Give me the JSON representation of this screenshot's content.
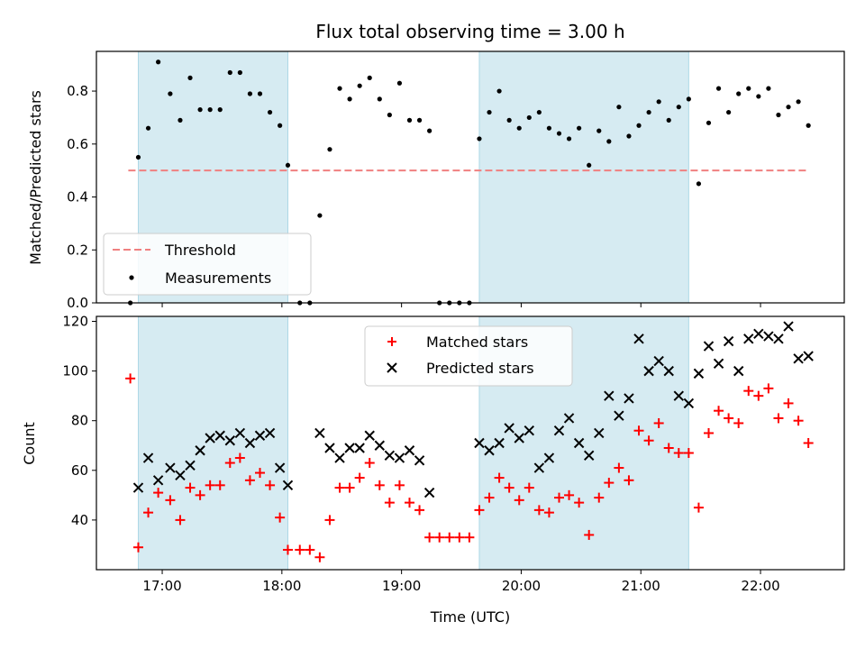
{
  "chart_data": [
    {
      "type": "scatter",
      "title": "Flux total observing time = 3.00 h",
      "ylabel": "Matched/Predicted stars",
      "xlabel": "",
      "ylim": [
        0,
        0.95
      ],
      "xlim": [
        "16:27",
        "22:42"
      ],
      "yticks": [
        "0.0",
        "0.2",
        "0.4",
        "0.6",
        "0.8"
      ],
      "yticks_values": [
        0,
        0.2,
        0.4,
        0.6,
        0.8
      ],
      "shaded_regions": [
        [
          "16:48",
          "18:03"
        ],
        [
          "19:39",
          "21:24"
        ]
      ],
      "threshold": {
        "name": "Threshold",
        "value": 0.5,
        "x_start": "16:43",
        "x_end": "22:24",
        "color": "#f08080"
      },
      "series": [
        {
          "name": "Measurements",
          "color": "#000000",
          "x": [
            "16:44",
            "16:48",
            "16:53",
            "16:58",
            "17:04",
            "17:09",
            "17:14",
            "17:19",
            "17:24",
            "17:29",
            "17:34",
            "17:39",
            "17:44",
            "17:49",
            "17:54",
            "17:59",
            "18:03",
            "18:09",
            "18:14",
            "18:19",
            "18:24",
            "18:29",
            "18:34",
            "18:39",
            "18:44",
            "18:49",
            "18:54",
            "18:59",
            "19:04",
            "19:09",
            "19:14",
            "19:19",
            "19:24",
            "19:29",
            "19:34",
            "19:39",
            "19:44",
            "19:49",
            "19:54",
            "19:59",
            "20:04",
            "20:09",
            "20:14",
            "20:19",
            "20:24",
            "20:29",
            "20:34",
            "20:39",
            "20:44",
            "20:49",
            "20:54",
            "20:59",
            "21:04",
            "21:09",
            "21:14",
            "21:19",
            "21:24",
            "21:29",
            "21:34",
            "21:39",
            "21:44",
            "21:49",
            "21:54",
            "21:59",
            "22:04",
            "22:09",
            "22:14",
            "22:19",
            "22:24"
          ],
          "y": [
            0.0,
            0.55,
            0.66,
            0.91,
            0.79,
            0.69,
            0.85,
            0.73,
            0.73,
            0.73,
            0.87,
            0.87,
            0.79,
            0.79,
            0.72,
            0.67,
            0.52,
            0.0,
            0.0,
            0.33,
            0.58,
            0.81,
            0.77,
            0.82,
            0.85,
            0.77,
            0.71,
            0.83,
            0.69,
            0.69,
            0.65,
            0.0,
            0.0,
            0.0,
            0.0,
            0.62,
            0.72,
            0.8,
            0.69,
            0.66,
            0.7,
            0.72,
            0.66,
            0.64,
            0.62,
            0.66,
            0.52,
            0.65,
            0.61,
            0.74,
            0.63,
            0.67,
            0.72,
            0.76,
            0.69,
            0.74,
            0.77,
            0.45,
            0.68,
            0.81,
            0.72,
            0.79,
            0.81,
            0.78,
            0.81,
            0.71,
            0.74,
            0.76,
            0.67
          ]
        }
      ],
      "legend": {
        "placement": "lower-left",
        "entries": [
          "Threshold",
          "Measurements"
        ]
      }
    },
    {
      "type": "scatter",
      "title": "",
      "xlabel": "Time (UTC)",
      "ylabel": "Count",
      "ylim": [
        20,
        122
      ],
      "xlim": [
        "16:27",
        "22:42"
      ],
      "xticks": [
        "17:00",
        "18:00",
        "19:00",
        "20:00",
        "21:00",
        "22:00"
      ],
      "yticks": [
        "40",
        "60",
        "80",
        "100",
        "120"
      ],
      "yticks_values": [
        40,
        60,
        80,
        100,
        120
      ],
      "shaded_regions": [
        [
          "16:48",
          "18:03"
        ],
        [
          "19:39",
          "21:24"
        ]
      ],
      "series": [
        {
          "name": "Matched stars",
          "marker": "+",
          "color": "#ff0000",
          "x": [
            "16:44",
            "16:48",
            "16:53",
            "16:58",
            "17:04",
            "17:09",
            "17:14",
            "17:19",
            "17:24",
            "17:29",
            "17:34",
            "17:39",
            "17:44",
            "17:49",
            "17:54",
            "17:59",
            "18:03",
            "18:09",
            "18:14",
            "18:19",
            "18:24",
            "18:29",
            "18:34",
            "18:39",
            "18:44",
            "18:49",
            "18:54",
            "18:59",
            "19:04",
            "19:09",
            "19:14",
            "19:19",
            "19:24",
            "19:29",
            "19:34",
            "19:39",
            "19:44",
            "19:49",
            "19:54",
            "19:59",
            "20:04",
            "20:09",
            "20:14",
            "20:19",
            "20:24",
            "20:29",
            "20:34",
            "20:39",
            "20:44",
            "20:49",
            "20:54",
            "20:59",
            "21:04",
            "21:09",
            "21:14",
            "21:19",
            "21:24",
            "21:29",
            "21:34",
            "21:39",
            "21:44",
            "21:49",
            "21:54",
            "21:59",
            "22:04",
            "22:09",
            "22:14",
            "22:19",
            "22:24"
          ],
          "y": [
            97,
            29,
            43,
            51,
            48,
            40,
            53,
            50,
            54,
            54,
            63,
            65,
            56,
            59,
            54,
            41,
            28,
            28,
            28,
            25,
            40,
            53,
            53,
            57,
            63,
            54,
            47,
            54,
            47,
            44,
            33,
            33,
            33,
            33,
            33,
            44,
            49,
            57,
            53,
            48,
            53,
            44,
            43,
            49,
            50,
            47,
            34,
            49,
            55,
            61,
            56,
            76,
            72,
            79,
            69,
            67,
            67,
            45,
            75,
            84,
            81,
            79,
            92,
            90,
            93,
            81,
            87,
            80,
            71
          ]
        },
        {
          "name": "Predicted stars",
          "marker": "x",
          "color": "#000000",
          "x": [
            "16:48",
            "16:53",
            "16:58",
            "17:04",
            "17:09",
            "17:14",
            "17:19",
            "17:24",
            "17:29",
            "17:34",
            "17:39",
            "17:44",
            "17:49",
            "17:54",
            "17:59",
            "18:03",
            "18:19",
            "18:24",
            "18:29",
            "18:34",
            "18:39",
            "18:44",
            "18:49",
            "18:54",
            "18:59",
            "19:04",
            "19:09",
            "19:14",
            "19:39",
            "19:44",
            "19:49",
            "19:54",
            "19:59",
            "20:04",
            "20:09",
            "20:14",
            "20:19",
            "20:24",
            "20:29",
            "20:34",
            "20:39",
            "20:44",
            "20:49",
            "20:54",
            "20:59",
            "21:04",
            "21:09",
            "21:14",
            "21:19",
            "21:24",
            "21:29",
            "21:34",
            "21:39",
            "21:44",
            "21:49",
            "21:54",
            "21:59",
            "22:04",
            "22:09",
            "22:14",
            "22:19",
            "22:24"
          ],
          "y": [
            53,
            65,
            56,
            61,
            58,
            62,
            68,
            73,
            74,
            72,
            75,
            71,
            74,
            75,
            61,
            54,
            75,
            69,
            65,
            69,
            69,
            74,
            70,
            66,
            65,
            68,
            64,
            51,
            71,
            68,
            71,
            77,
            73,
            76,
            61,
            65,
            76,
            81,
            71,
            66,
            75,
            90,
            82,
            89,
            113,
            100,
            104,
            100,
            90,
            87,
            99,
            110,
            103,
            112,
            100,
            113,
            115,
            114,
            113,
            118,
            105,
            106
          ]
        }
      ],
      "legend": {
        "placement": "upper-center",
        "entries": [
          "Matched stars",
          "Predicted stars"
        ]
      }
    }
  ]
}
